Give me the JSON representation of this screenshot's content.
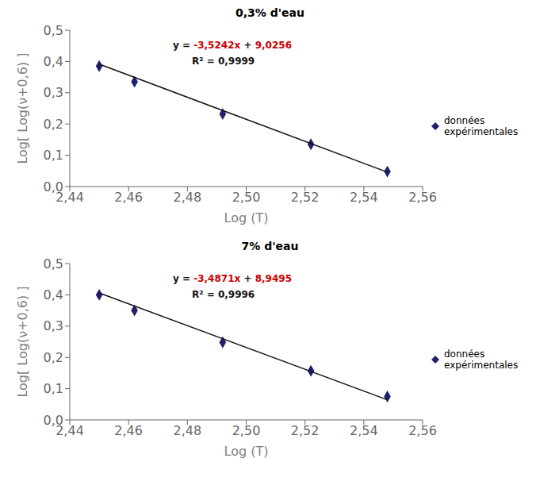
{
  "chart_data": [
    {
      "type": "scatter",
      "title": "0,3% d'eau",
      "xlabel": "Log (T)",
      "ylabel": "Log[ Log(ν+0,6) ]",
      "xlim": [
        2.44,
        2.56
      ],
      "ylim": [
        0.0,
        0.5
      ],
      "xticks": [
        {
          "value": 2.44,
          "label": "2,44"
        },
        {
          "value": 2.46,
          "label": "2,46"
        },
        {
          "value": 2.48,
          "label": "2,48"
        },
        {
          "value": 2.5,
          "label": "2,50"
        },
        {
          "value": 2.52,
          "label": "2,52"
        },
        {
          "value": 2.54,
          "label": "2,54"
        },
        {
          "value": 2.56,
          "label": "2,56"
        }
      ],
      "yticks": [
        {
          "value": 0.0,
          "label": "0,0"
        },
        {
          "value": 0.1,
          "label": "0,1"
        },
        {
          "value": 0.2,
          "label": "0,2"
        },
        {
          "value": 0.3,
          "label": "0,3"
        },
        {
          "value": 0.4,
          "label": "0,4"
        },
        {
          "value": 0.5,
          "label": "0,5"
        }
      ],
      "grid": false,
      "legend": "right",
      "annotations": [
        {
          "parts": [
            {
              "text": "y = ",
              "color": "#111111"
            },
            {
              "text": "-3,5242x",
              "color": "#cc0000"
            },
            {
              "text": " + ",
              "color": "#111111"
            },
            {
              "text": "9,0256",
              "color": "#cc0000"
            }
          ]
        },
        {
          "parts": [
            {
              "text": "R² = 0,9999",
              "color": "#111111"
            }
          ]
        }
      ],
      "series": [
        {
          "name": "données\nexpérimentales",
          "type": "scatter",
          "marker": "diamond",
          "color": "#1f1f6e",
          "x": [
            2.45,
            2.462,
            2.492,
            2.522,
            2.548
          ],
          "values": [
            0.385,
            0.335,
            0.232,
            0.135,
            0.048
          ]
        },
        {
          "type": "line",
          "color": "#111111",
          "x": [
            2.45,
            2.548
          ],
          "values": [
            0.39131,
            0.0459384
          ]
        }
      ]
    },
    {
      "type": "scatter",
      "title": "7% d'eau",
      "xlabel": "Log (T)",
      "ylabel": "Log[ Log(ν+0,6) ]",
      "xlim": [
        2.44,
        2.56
      ],
      "ylim": [
        0.0,
        0.5
      ],
      "xticks": [
        {
          "value": 2.44,
          "label": "2,44"
        },
        {
          "value": 2.46,
          "label": "2,46"
        },
        {
          "value": 2.48,
          "label": "2,48"
        },
        {
          "value": 2.5,
          "label": "2,50"
        },
        {
          "value": 2.52,
          "label": "2,52"
        },
        {
          "value": 2.54,
          "label": "2,54"
        },
        {
          "value": 2.56,
          "label": "2,56"
        }
      ],
      "yticks": [
        {
          "value": 0.0,
          "label": "0,0"
        },
        {
          "value": 0.1,
          "label": "0,1"
        },
        {
          "value": 0.2,
          "label": "0,2"
        },
        {
          "value": 0.3,
          "label": "0,3"
        },
        {
          "value": 0.4,
          "label": "0,4"
        },
        {
          "value": 0.5,
          "label": "0,5"
        }
      ],
      "grid": false,
      "legend": "right",
      "annotations": [
        {
          "parts": [
            {
              "text": "y = ",
              "color": "#111111"
            },
            {
              "text": "-3,4871x",
              "color": "#cc0000"
            },
            {
              "text": " + ",
              "color": "#111111"
            },
            {
              "text": "8,9495",
              "color": "#cc0000"
            }
          ]
        },
        {
          "parts": [
            {
              "text": "R² = 0,9996",
              "color": "#111111"
            }
          ]
        }
      ],
      "series": [
        {
          "name": "données\nexpérimentales",
          "type": "scatter",
          "marker": "diamond",
          "color": "#1f1f6e",
          "x": [
            2.45,
            2.462,
            2.492,
            2.522,
            2.548
          ],
          "values": [
            0.4,
            0.35,
            0.248,
            0.157,
            0.075
          ]
        },
        {
          "type": "line",
          "color": "#111111",
          "x": [
            2.45,
            2.548
          ],
          "values": [
            0.406105,
            0.0643692
          ]
        }
      ]
    }
  ]
}
